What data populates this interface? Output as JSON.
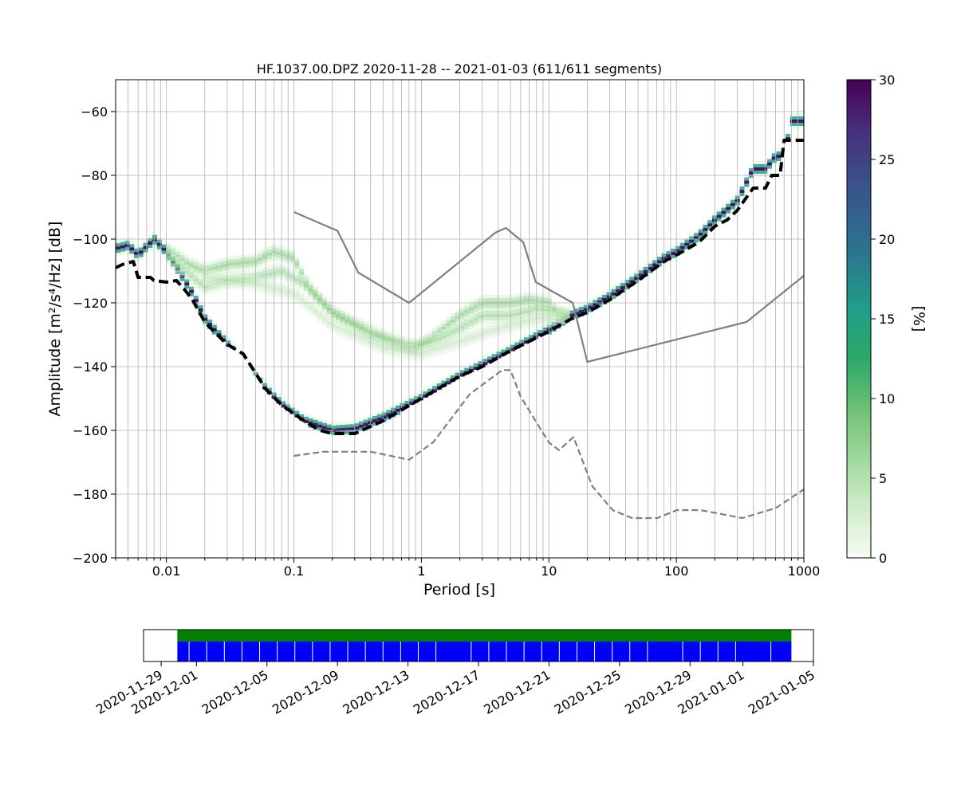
{
  "chart_data": [
    {
      "type": "heatmap",
      "title": "HF.1037.00.DPZ   2020-11-28 -- 2021-01-03  (611/611 segments)",
      "xlabel": "Period [s]",
      "ylabel": "Amplitude [m²/s⁴/Hz] [dB]",
      "x_scale": "log",
      "xlim": [
        0.004,
        1000
      ],
      "ylim": [
        -200,
        -50
      ],
      "grid": true,
      "x_ticks": [
        {
          "value": 0.01,
          "label": "0.01"
        },
        {
          "value": 0.1,
          "label": "0.1"
        },
        {
          "value": 1,
          "label": "1"
        },
        {
          "value": 10,
          "label": "10"
        },
        {
          "value": 100,
          "label": "100"
        },
        {
          "value": 1000,
          "label": "1000"
        }
      ],
      "y_ticks": [
        {
          "value": -60,
          "label": "−60"
        },
        {
          "value": -80,
          "label": "−80"
        },
        {
          "value": -100,
          "label": "−100"
        },
        {
          "value": -120,
          "label": "−120"
        },
        {
          "value": -140,
          "label": "−140"
        },
        {
          "value": -160,
          "label": "−160"
        },
        {
          "value": -180,
          "label": "−180"
        },
        {
          "value": -200,
          "label": "−200"
        }
      ],
      "colorbar": {
        "label": "[%]",
        "range": [
          0,
          30
        ],
        "colormap": [
          "#f7fcf5",
          "#c7e9c0",
          "#74c476",
          "#2aa86a",
          "#1f9e89",
          "#2c728e",
          "#3b528b",
          "#472d7b",
          "#440154"
        ],
        "ticks": [
          {
            "value": 0,
            "label": "0"
          },
          {
            "value": 5,
            "label": "5"
          },
          {
            "value": 10,
            "label": "10"
          },
          {
            "value": 15,
            "label": "15"
          },
          {
            "value": 20,
            "label": "20"
          },
          {
            "value": 25,
            "label": "25"
          },
          {
            "value": 30,
            "label": "30"
          }
        ]
      },
      "series": [
        {
          "role": "high-noise-model",
          "style": "solid",
          "color": "#808080",
          "points": [
            [
              0.1,
              -91.5
            ],
            [
              0.22,
              -97.4
            ],
            [
              0.32,
              -110.5
            ],
            [
              0.8,
              -120.0
            ],
            [
              3.8,
              -98.0
            ],
            [
              4.6,
              -96.5
            ],
            [
              6.3,
              -101.0
            ],
            [
              7.9,
              -113.5
            ],
            [
              15.4,
              -120.0
            ],
            [
              20.0,
              -138.5
            ],
            [
              354.8,
              -126.0
            ],
            [
              1000,
              -111.5
            ]
          ]
        },
        {
          "role": "low-noise-model",
          "style": "dashed",
          "color": "#808080",
          "points": [
            [
              0.1,
              -168.0
            ],
            [
              0.17,
              -166.7
            ],
            [
              0.4,
              -166.7
            ],
            [
              0.8,
              -169.2
            ],
            [
              1.24,
              -163.7
            ],
            [
              2.4,
              -148.6
            ],
            [
              4.3,
              -141.1
            ],
            [
              5.0,
              -141.1
            ],
            [
              6.0,
              -149.4
            ],
            [
              10.0,
              -163.8
            ],
            [
              12.0,
              -166.2
            ],
            [
              15.6,
              -162.1
            ],
            [
              21.9,
              -177.5
            ],
            [
              31.6,
              -185.0
            ],
            [
              45.0,
              -187.5
            ],
            [
              70.8,
              -187.5
            ],
            [
              101,
              -185.0
            ],
            [
              154,
              -185.0
            ],
            [
              328,
              -187.5
            ],
            [
              600,
              -184.4
            ],
            [
              1000,
              -178.5
            ]
          ]
        },
        {
          "role": "station-minimum",
          "style": "dashed-bold",
          "color": "#000000",
          "points": [
            [
              0.004,
              -109
            ],
            [
              0.0045,
              -108
            ],
            [
              0.0055,
              -107
            ],
            [
              0.006,
              -112
            ],
            [
              0.0075,
              -112
            ],
            [
              0.008,
              -113
            ],
            [
              0.01,
              -113.5
            ],
            [
              0.012,
              -113
            ],
            [
              0.014,
              -116
            ],
            [
              0.016,
              -119
            ],
            [
              0.02,
              -126
            ],
            [
              0.025,
              -130
            ],
            [
              0.03,
              -133
            ],
            [
              0.04,
              -136
            ],
            [
              0.05,
              -142
            ],
            [
              0.06,
              -147
            ],
            [
              0.08,
              -152
            ],
            [
              0.12,
              -157
            ],
            [
              0.16,
              -160
            ],
            [
              0.2,
              -161
            ],
            [
              0.3,
              -161
            ],
            [
              0.5,
              -157
            ],
            [
              1,
              -150
            ],
            [
              2,
              -143
            ],
            [
              3,
              -140
            ],
            [
              5,
              -135
            ],
            [
              10,
              -129
            ],
            [
              15,
              -125
            ],
            [
              20,
              -123
            ],
            [
              30,
              -119
            ],
            [
              50,
              -113
            ],
            [
              80,
              -107
            ],
            [
              100,
              -105
            ],
            [
              150,
              -101
            ],
            [
              200,
              -96
            ],
            [
              250,
              -94
            ],
            [
              300,
              -91
            ],
            [
              400,
              -84
            ],
            [
              450,
              -84
            ],
            [
              500,
              -84
            ],
            [
              560,
              -80
            ],
            [
              650,
              -80
            ],
            [
              700,
              -69
            ],
            [
              1000,
              -69
            ]
          ]
        }
      ],
      "density_ridges": [
        {
          "weight": 0.9,
          "points": [
            [
              0.004,
              -103
            ],
            [
              0.005,
              -102
            ],
            [
              0.006,
              -105
            ],
            [
              0.008,
              -100
            ],
            [
              0.01,
              -104
            ],
            [
              0.013,
              -111
            ],
            [
              0.016,
              -117
            ],
            [
              0.02,
              -125
            ],
            [
              0.03,
              -133
            ],
            [
              0.045,
              -141
            ],
            [
              0.06,
              -147
            ],
            [
              0.08,
              -152
            ],
            [
              0.12,
              -157
            ],
            [
              0.2,
              -160
            ],
            [
              0.3,
              -159.5
            ],
            [
              0.5,
              -156
            ],
            [
              1,
              -150
            ],
            [
              2,
              -143
            ],
            [
              3,
              -139.5
            ],
            [
              5,
              -135
            ],
            [
              10,
              -128.5
            ],
            [
              15,
              -124
            ],
            [
              20,
              -122
            ],
            [
              30,
              -118
            ],
            [
              50,
              -112
            ],
            [
              80,
              -106
            ],
            [
              100,
              -104
            ],
            [
              150,
              -99
            ],
            [
              200,
              -94
            ],
            [
              300,
              -88
            ],
            [
              400,
              -78
            ],
            [
              500,
              -78
            ],
            [
              600,
              -74
            ],
            [
              700,
              -74
            ],
            [
              800,
              -63
            ],
            [
              1000,
              -63
            ]
          ]
        },
        {
          "weight": 0.45,
          "points": [
            [
              0.01,
              -103
            ],
            [
              0.015,
              -108
            ],
            [
              0.02,
              -110
            ],
            [
              0.03,
              -108
            ],
            [
              0.05,
              -107
            ],
            [
              0.07,
              -104
            ],
            [
              0.1,
              -106
            ],
            [
              0.13,
              -115
            ],
            [
              0.2,
              -123
            ],
            [
              0.4,
              -129
            ],
            [
              0.6,
              -132
            ],
            [
              0.9,
              -134
            ],
            [
              1.2,
              -131
            ],
            [
              2,
              -124
            ],
            [
              3,
              -120
            ],
            [
              5,
              -120
            ],
            [
              7,
              -119
            ],
            [
              10,
              -120
            ],
            [
              12,
              -124
            ],
            [
              15,
              -124
            ]
          ]
        },
        {
          "weight": 0.4,
          "points": [
            [
              0.01,
              -105
            ],
            [
              0.015,
              -111
            ],
            [
              0.02,
              -115
            ],
            [
              0.03,
              -113
            ],
            [
              0.05,
              -112
            ],
            [
              0.08,
              -110
            ],
            [
              0.12,
              -114
            ],
            [
              0.2,
              -123
            ],
            [
              0.4,
              -130
            ],
            [
              0.8,
              -134
            ],
            [
              1.3,
              -132
            ],
            [
              2,
              -128
            ],
            [
              3,
              -124
            ],
            [
              5,
              -124
            ],
            [
              8,
              -122
            ],
            [
              12,
              -123
            ],
            [
              15,
              -124
            ]
          ]
        },
        {
          "weight": 0.28,
          "points": [
            [
              0.02,
              -112
            ],
            [
              0.05,
              -114
            ],
            [
              0.1,
              -117
            ],
            [
              0.2,
              -127
            ],
            [
              0.5,
              -134
            ],
            [
              1,
              -136
            ],
            [
              2,
              -132
            ],
            [
              4,
              -128
            ],
            [
              8,
              -125
            ],
            [
              15,
              -125
            ]
          ]
        }
      ]
    },
    {
      "type": "timeline",
      "x_scale": "date",
      "xlim": [
        "2020-11-28",
        "2021-01-05"
      ],
      "data_range": [
        "2020-11-29T22:00",
        "2021-01-03T18:00"
      ],
      "tracks": [
        {
          "role": "data-availability",
          "color": "#008000"
        },
        {
          "role": "psd-segments",
          "color": "#0000ff",
          "separator_color": "#ffffff"
        }
      ],
      "segment_gaps": [
        "2020-11-30",
        "2020-12-01",
        "2020-12-02",
        "2020-12-03",
        "2020-12-04",
        "2020-12-05",
        "2020-12-06",
        "2020-12-07",
        "2020-12-08",
        "2020-12-09",
        "2020-12-10",
        "2020-12-11",
        "2020-12-12",
        "2020-12-13",
        "2020-12-14",
        "2020-12-16",
        "2020-12-17",
        "2020-12-18",
        "2020-12-19",
        "2020-12-20",
        "2020-12-21",
        "2020-12-22",
        "2020-12-23",
        "2020-12-24",
        "2020-12-25",
        "2020-12-26",
        "2020-12-28",
        "2020-12-29",
        "2020-12-30",
        "2020-12-31",
        "2021-01-02"
      ],
      "x_ticks": [
        {
          "value": "2020-11-29",
          "label": "2020-11-29"
        },
        {
          "value": "2020-12-01",
          "label": "2020-12-01"
        },
        {
          "value": "2020-12-05",
          "label": "2020-12-05"
        },
        {
          "value": "2020-12-09",
          "label": "2020-12-09"
        },
        {
          "value": "2020-12-13",
          "label": "2020-12-13"
        },
        {
          "value": "2020-12-17",
          "label": "2020-12-17"
        },
        {
          "value": "2020-12-21",
          "label": "2020-12-21"
        },
        {
          "value": "2020-12-25",
          "label": "2020-12-25"
        },
        {
          "value": "2020-12-29",
          "label": "2020-12-29"
        },
        {
          "value": "2021-01-01",
          "label": "2021-01-01"
        },
        {
          "value": "2021-01-05",
          "label": "2021-01-05"
        }
      ]
    }
  ]
}
